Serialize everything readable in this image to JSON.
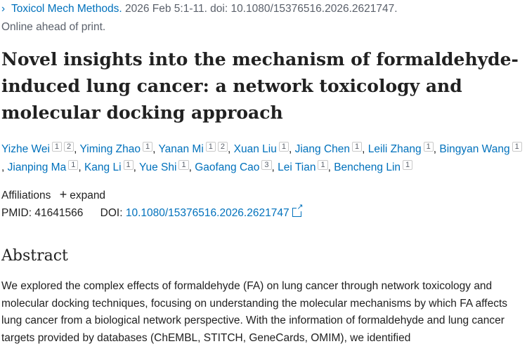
{
  "citation": {
    "journal": "Toxicol Mech Methods.",
    "details": "2026 Feb 5:1-11. doi: 10.1080/15376516.2026.2621747."
  },
  "status": "Online ahead of print.",
  "title": "Novel insights into the mechanism of formaldehyde-induced lung cancer: a network toxicology and molecular docking approach",
  "authors": [
    {
      "name": "Yizhe Wei",
      "affs": [
        "1",
        "2"
      ]
    },
    {
      "name": "Yiming Zhao",
      "affs": [
        "1"
      ]
    },
    {
      "name": "Yanan Mi",
      "affs": [
        "1",
        "2"
      ]
    },
    {
      "name": "Xuan Liu",
      "affs": [
        "1"
      ]
    },
    {
      "name": "Jiang Chen",
      "affs": [
        "1"
      ]
    },
    {
      "name": "Leili Zhang",
      "affs": [
        "1"
      ]
    },
    {
      "name": "Bingyan Wang",
      "affs": [
        "1"
      ]
    },
    {
      "name": "Jianping Ma",
      "affs": [
        "1"
      ]
    },
    {
      "name": "Kang Li",
      "affs": [
        "1"
      ]
    },
    {
      "name": "Yue Shi",
      "affs": [
        "1"
      ]
    },
    {
      "name": "Gaofang Cao",
      "affs": [
        "3"
      ]
    },
    {
      "name": "Lei Tian",
      "affs": [
        "1"
      ]
    },
    {
      "name": "Bencheng Lin",
      "affs": [
        "1"
      ]
    }
  ],
  "affiliations": {
    "label": "Affiliations",
    "toggle": "expand"
  },
  "identifiers": {
    "pmid_label": "PMID:",
    "pmid": "41641566",
    "doi_label": "DOI:",
    "doi": "10.1080/15376516.2026.2621747"
  },
  "abstract": {
    "heading": "Abstract",
    "text": "We explored the complex effects of formaldehyde (FA) on lung cancer through network toxicology and molecular docking techniques, focusing on understanding the molecular mechanisms by which FA affects lung cancer from a biological network perspective. With the information of formaldehyde and lung cancer targets provided by databases (ChEMBL, STITCH, GeneCards, OMIM), we identified"
  }
}
